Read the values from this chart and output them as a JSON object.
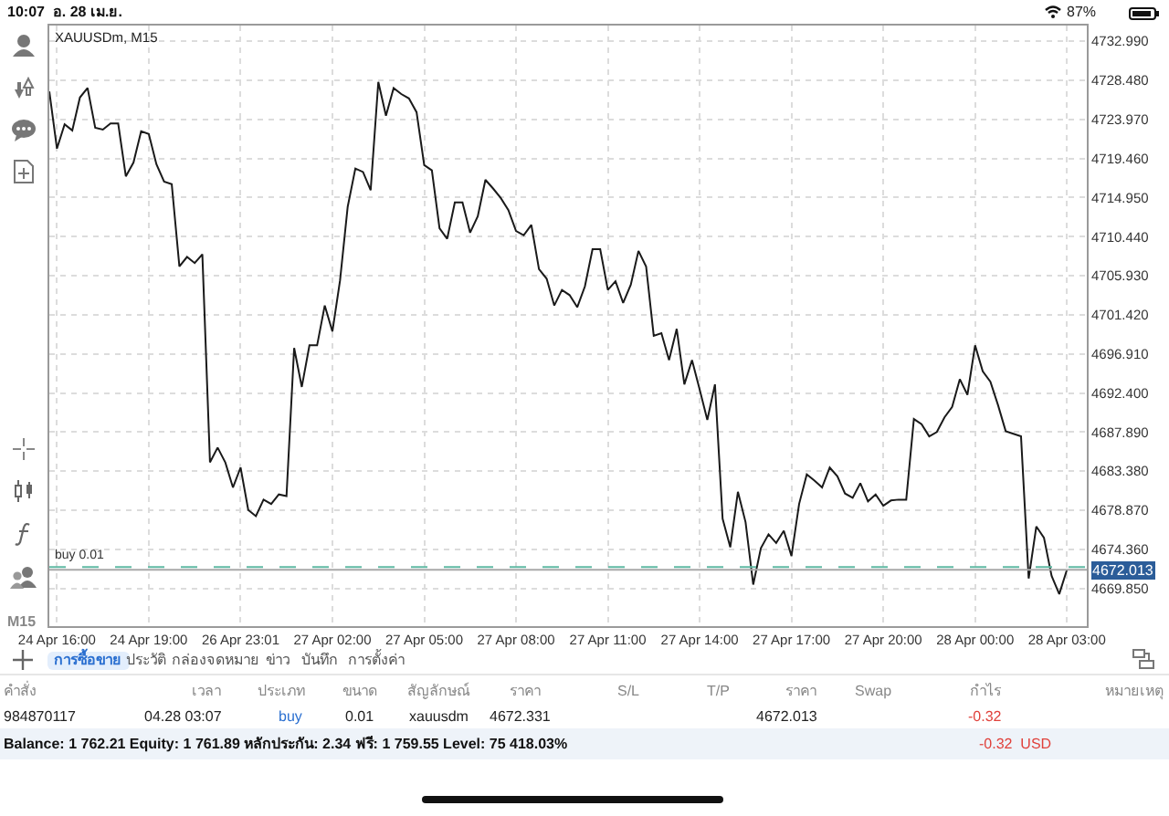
{
  "chart_data": {
    "type": "line",
    "title": "XAUUSDm, M15",
    "categories": [
      null,
      "24 Apr 16:00",
      null,
      null,
      null,
      null,
      null,
      null,
      null,
      null,
      null,
      null,
      null,
      "24 Apr 19:00",
      null,
      null,
      null,
      null,
      null,
      null,
      null,
      null,
      null,
      null,
      null,
      "26 Apr 23:01",
      null,
      null,
      null,
      null,
      null,
      null,
      null,
      null,
      null,
      null,
      null,
      "27 Apr 02:00",
      null,
      null,
      null,
      null,
      null,
      null,
      null,
      null,
      null,
      null,
      null,
      "27 Apr 05:00",
      null,
      null,
      null,
      null,
      null,
      null,
      null,
      null,
      null,
      null,
      null,
      "27 Apr 08:00",
      null,
      null,
      null,
      null,
      null,
      null,
      null,
      null,
      null,
      null,
      null,
      "27 Apr 11:00",
      null,
      null,
      null,
      null,
      null,
      null,
      null,
      null,
      null,
      null,
      null,
      "27 Apr 14:00",
      null,
      null,
      null,
      null,
      null,
      null,
      null,
      null,
      null,
      null,
      null,
      "27 Apr 17:00",
      null,
      null,
      null,
      null,
      null,
      null,
      null,
      null,
      null,
      null,
      null,
      "27 Apr 20:00",
      null,
      null,
      null,
      null,
      null,
      null,
      null,
      null,
      null,
      null,
      null,
      "28 Apr 00:00",
      null,
      null,
      null,
      null,
      null,
      null,
      null,
      null,
      null,
      null,
      null,
      "28 Apr 03:00"
    ],
    "series": [
      {
        "color": "#1a1a1a",
        "values": [
          4727.2,
          4720.6,
          4723.4,
          4722.7,
          4726.5,
          4727.6,
          4723.0,
          4722.8,
          4723.5,
          4723.5,
          4717.4,
          4719.0,
          4722.6,
          4722.3,
          4718.8,
          4716.8,
          4716.5,
          4707.0,
          4708.1,
          4707.4,
          4708.4,
          4684.4,
          4686.1,
          4684.4,
          4681.5,
          4683.8,
          4678.9,
          4678.2,
          4680.1,
          4679.6,
          4680.7,
          4680.5,
          4697.6,
          4693.1,
          4697.9,
          4697.9,
          4702.5,
          4699.5,
          4705.4,
          4713.9,
          4718.3,
          4717.9,
          4715.8,
          4728.3,
          4724.4,
          4727.6,
          4726.9,
          4726.4,
          4724.8,
          4718.7,
          4718.1,
          4711.4,
          4710.2,
          4714.4,
          4714.4,
          4710.9,
          4712.8,
          4717.0,
          4716.0,
          4714.9,
          4713.5,
          4711.1,
          4710.6,
          4711.8,
          4706.7,
          4705.6,
          4702.5,
          4704.3,
          4703.7,
          4702.3,
          4704.7,
          4709.0,
          4709.0,
          4704.3,
          4705.3,
          4702.8,
          4704.9,
          4708.8,
          4707.0,
          4699.0,
          4699.3,
          4696.2,
          4699.8,
          4693.4,
          4696.2,
          4692.8,
          4689.3,
          4693.4,
          4677.9,
          4674.6,
          4681.0,
          4677.5,
          4670.3,
          4674.5,
          4676.1,
          4675.1,
          4676.5,
          4673.6,
          4679.6,
          4683.0,
          4682.3,
          4681.5,
          4683.8,
          4682.8,
          4680.8,
          4680.3,
          4682.0,
          4679.9,
          4680.7,
          4679.4,
          4680.0,
          4680.1,
          4680.1,
          4689.4,
          4688.8,
          4687.4,
          4687.9,
          4689.6,
          4690.8,
          4694.0,
          4692.2,
          4697.9,
          4694.9,
          4693.7,
          4691.0,
          4688.0,
          4687.7,
          4687.4,
          4671.0,
          4677.0,
          4675.7,
          4671.3,
          4669.2,
          4672.0
        ]
      }
    ],
    "ylim": [
      4665.5,
      4734.8
    ],
    "yticks": [
      {
        "value": 4732.99,
        "label": "4732.990"
      },
      {
        "value": 4728.48,
        "label": "4728.480"
      },
      {
        "value": 4723.97,
        "label": "4723.970"
      },
      {
        "value": 4719.46,
        "label": "4719.460"
      },
      {
        "value": 4714.95,
        "label": "4714.950"
      },
      {
        "value": 4710.44,
        "label": "4710.440"
      },
      {
        "value": 4705.93,
        "label": "4705.930"
      },
      {
        "value": 4701.42,
        "label": "4701.420"
      },
      {
        "value": 4696.91,
        "label": "4696.910"
      },
      {
        "value": 4692.4,
        "label": "4692.400"
      },
      {
        "value": 4687.89,
        "label": "4687.890"
      },
      {
        "value": 4683.38,
        "label": "4683.380"
      },
      {
        "value": 4678.87,
        "label": "4678.870"
      },
      {
        "value": 4674.36,
        "label": "4674.360"
      },
      {
        "value": 4669.85,
        "label": "4669.850"
      }
    ],
    "grid": true,
    "ref_lines": [
      {
        "axis": "y",
        "value": 4672.331,
        "label": "buy 0.01",
        "color": "#5fb9a3",
        "line_style": "dashed"
      },
      {
        "axis": "y",
        "value": 4672.013,
        "label": "4672.013",
        "color": "#a8a8a8",
        "line_style": "solid"
      }
    ],
    "annotations": [
      "10:07  อ. 28 เม.ย.",
      "87%",
      "M15",
      "การซื้อขาย",
      "ประวัติ",
      "กล่องจดหมาย",
      "ข่าว",
      "บันทึก",
      "การตั้งค่า",
      "คำสั่ง",
      "เวลา",
      "ประเภท",
      "ขนาด",
      "สัญลักษณ์",
      "ราคา",
      "S/L",
      "T/P",
      "ราคา",
      "Swap",
      "กำไร",
      "หมายเหตุ",
      "984870117",
      "04.28 03:07",
      "buy",
      "0.01",
      "xauusdm",
      "4672.331",
      "4672.013",
      "-0.32",
      "Balance: 1 762.21 Equity: 1 761.89 หลักประกัน: 2.34 ฟรี: 1 759.55 Level: 75 418.03%",
      "-0.32  USD"
    ]
  }
}
